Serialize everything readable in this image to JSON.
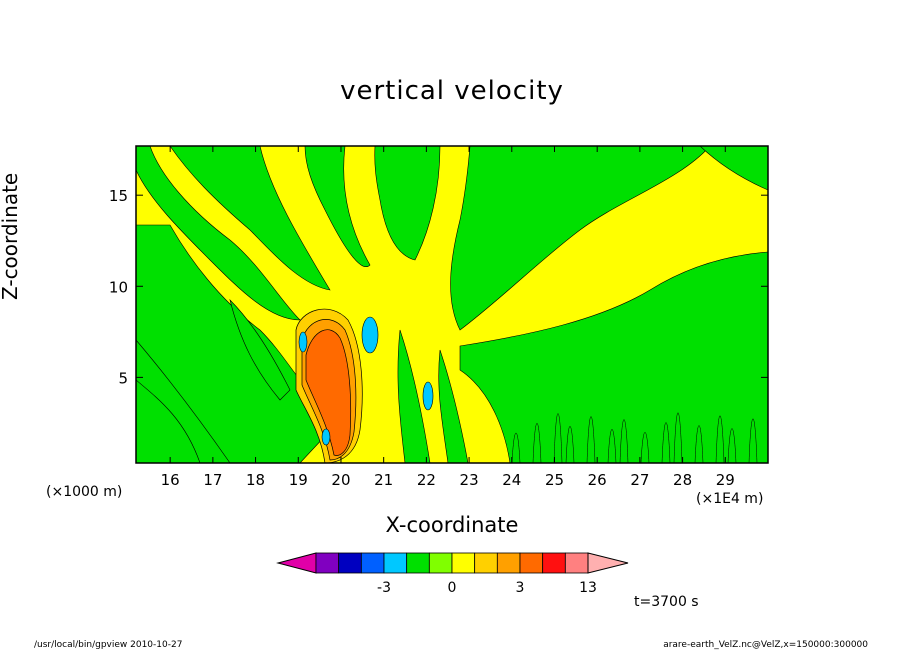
{
  "chart_data": {
    "type": "heatmap",
    "title": "vertical velocity",
    "xlabel": "X-coordinate",
    "ylabel": "Z-coordinate",
    "x_unit_left": "(×1000 m)",
    "x_unit_right": "(×1E4 m)",
    "xlim": [
      15.2,
      30.0
    ],
    "ylim": [
      0.3,
      17.7
    ],
    "x_ticks": [
      16,
      17,
      18,
      19,
      20,
      21,
      22,
      23,
      24,
      25,
      26,
      27,
      28,
      29
    ],
    "y_ticks": [
      5,
      10,
      15
    ],
    "colorbar": {
      "levels": [
        -6,
        -5,
        -4,
        -3,
        -2,
        -1,
        0,
        1,
        2,
        3,
        6,
        9,
        12,
        13
      ],
      "tick_labels": [
        "-3",
        "0",
        "3",
        "13"
      ],
      "colors": [
        "#e000a8",
        "#8000c0",
        "#0000c0",
        "#0060ff",
        "#00c8ff",
        "#00e000",
        "#80ff00",
        "#ffff00",
        "#ffd000",
        "#ffa000",
        "#ff6a00",
        "#ff1010",
        "#ff8080",
        "#ffb0b0"
      ]
    },
    "features": [
      {
        "type": "updraft-core",
        "x_range": [
          19.0,
          20.4
        ],
        "z_range": [
          0.5,
          8.3
        ],
        "max_level": "6-9"
      },
      {
        "type": "downdraft",
        "x": 20.5,
        "z": 7.0,
        "level": "-2 to -1"
      },
      {
        "type": "downdraft",
        "x": 19.0,
        "z": 6.3,
        "level": "-2 to -1"
      },
      {
        "type": "downdraft",
        "x": 22.0,
        "z": 4.5,
        "level": "-2 to -1"
      }
    ]
  },
  "time_label": "t=3700 s",
  "footer_left": "/usr/local/bin/gpview   2010-10-27",
  "footer_right": "arare-earth_VelZ.nc@VelZ,x=150000:300000"
}
